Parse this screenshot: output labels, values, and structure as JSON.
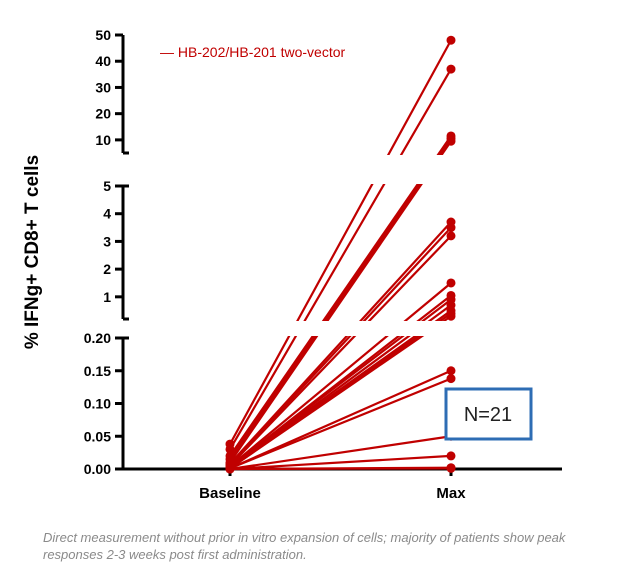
{
  "chart_data": {
    "type": "line",
    "ylabel": "% IFNg+ CD8+ T cells",
    "categories": [
      "Baseline",
      "Max"
    ],
    "legend": {
      "label": "— HB-202/HB-201 two-vector",
      "color": "#c00000",
      "placement": "top-left"
    },
    "y_axis": {
      "scale": "broken",
      "segments": [
        {
          "range": [
            0,
            0.2
          ],
          "ticks": [
            "0.00",
            "0.05",
            "0.10",
            "0.15",
            "0.20"
          ]
        },
        {
          "range": [
            0.2,
            5
          ],
          "ticks": [
            "1",
            "2",
            "3",
            "4",
            "5"
          ]
        },
        {
          "range": [
            5,
            50
          ],
          "ticks": [
            "10",
            "20",
            "30",
            "40",
            "50"
          ]
        }
      ]
    },
    "series_color": "#c00000",
    "series": [
      {
        "values": [
          0.038,
          48
        ]
      },
      {
        "values": [
          0.03,
          37
        ]
      },
      {
        "values": [
          0.02,
          11.5
        ]
      },
      {
        "values": [
          0.015,
          10.5
        ]
      },
      {
        "values": [
          0.01,
          9.5
        ]
      },
      {
        "values": [
          0.008,
          3.7
        ]
      },
      {
        "values": [
          0.006,
          3.5
        ]
      },
      {
        "values": [
          0.005,
          3.2
        ]
      },
      {
        "values": [
          0.004,
          1.5
        ]
      },
      {
        "values": [
          0.003,
          1.05
        ]
      },
      {
        "values": [
          0.003,
          0.9
        ]
      },
      {
        "values": [
          0.002,
          0.7
        ]
      },
      {
        "values": [
          0.002,
          0.5
        ]
      },
      {
        "values": [
          0.001,
          0.4
        ]
      },
      {
        "values": [
          0.001,
          0.3
        ]
      },
      {
        "values": [
          0.001,
          0.15
        ]
      },
      {
        "values": [
          0.001,
          0.138
        ]
      },
      {
        "values": [
          0.0,
          0.05
        ]
      },
      {
        "values": [
          0.0,
          0.02
        ]
      },
      {
        "values": [
          0.0,
          0.002
        ]
      },
      {
        "values": [
          0.0,
          0.001
        ]
      }
    ]
  },
  "annotation": {
    "text": "N=21",
    "border_color": "#2e6db4"
  },
  "footnote": "Direct measurement without prior in vitro expansion of cells; majority of patients show peak responses 2-3 weeks post first administration."
}
